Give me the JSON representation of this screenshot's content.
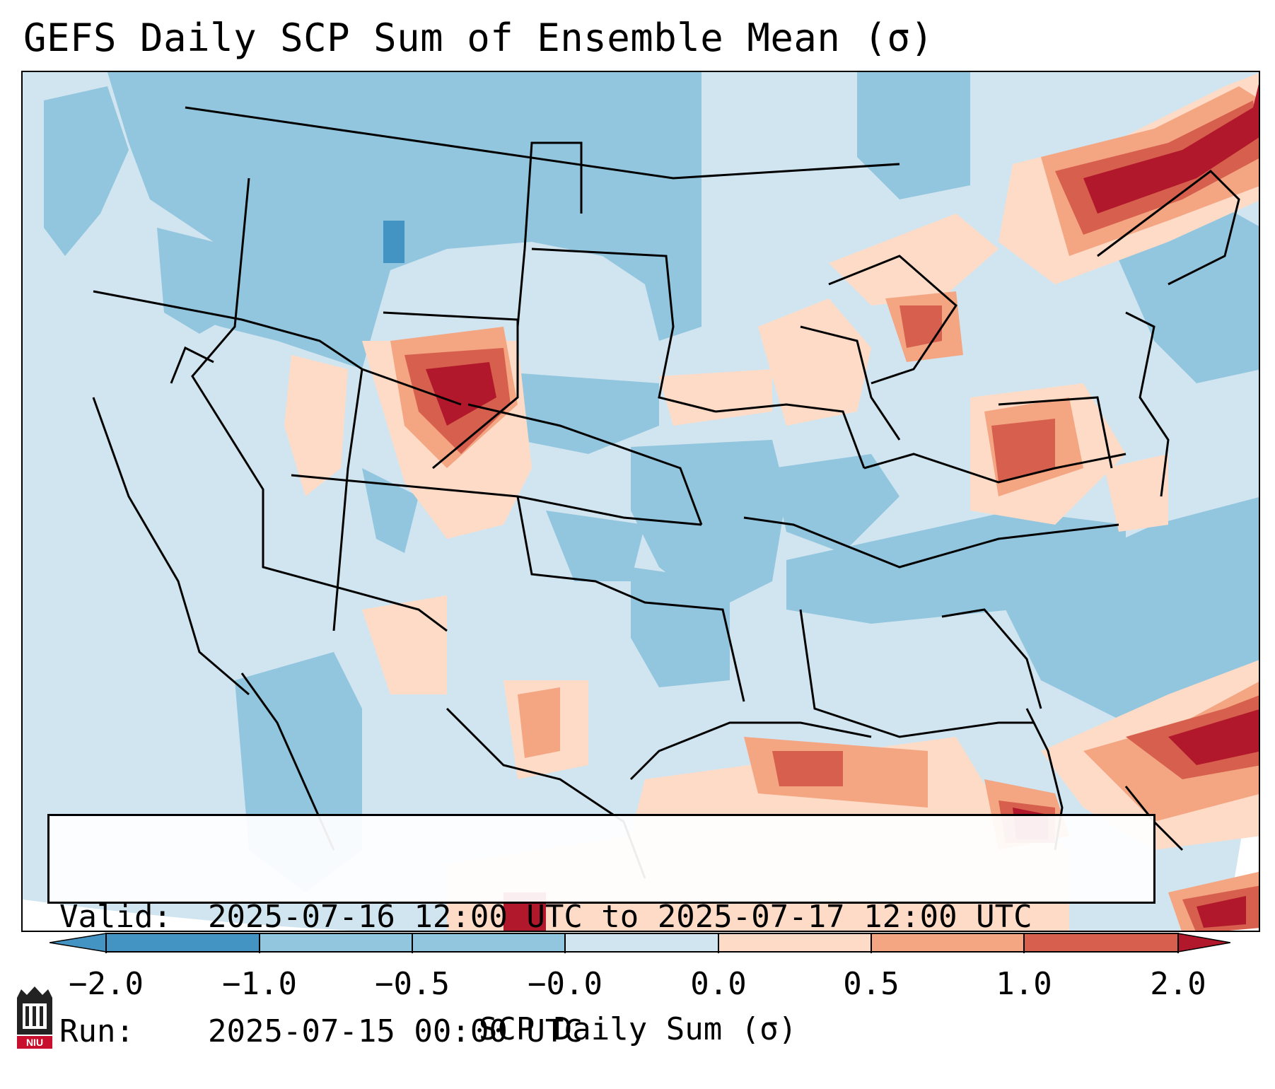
{
  "title": "GEFS Daily SCP Sum of Ensemble Mean (σ)",
  "info": {
    "valid_label": "Valid:",
    "valid_value": "2025-07-16 12:00 UTC to 2025-07-17 12:00 UTC",
    "run_label": "Run:",
    "run_value": "2025-07-15 00:00 UTC"
  },
  "colorbar": {
    "label": "SCP Daily Sum (σ)",
    "ticks": [
      "−2.0",
      "−1.0",
      "−0.5",
      "−0.0",
      "0.0",
      "0.5",
      "1.0",
      "2.0"
    ],
    "colors": [
      "#4393c3",
      "#92c5de",
      "#92c5de",
      "#d1e5f0",
      "#fddbc7",
      "#f4a582",
      "#d6604d",
      "#b2182b"
    ]
  },
  "colors": {
    "bg_low": "#d1e5f0",
    "neg_mid": "#92c5de",
    "neg_strong": "#4393c3",
    "pos_low": "#fddbc7",
    "pos_mid": "#f4a582",
    "pos_high": "#d6604d",
    "pos_max": "#b2182b"
  },
  "logo": {
    "text": "NIU",
    "icon": "niu-logo-icon"
  }
}
